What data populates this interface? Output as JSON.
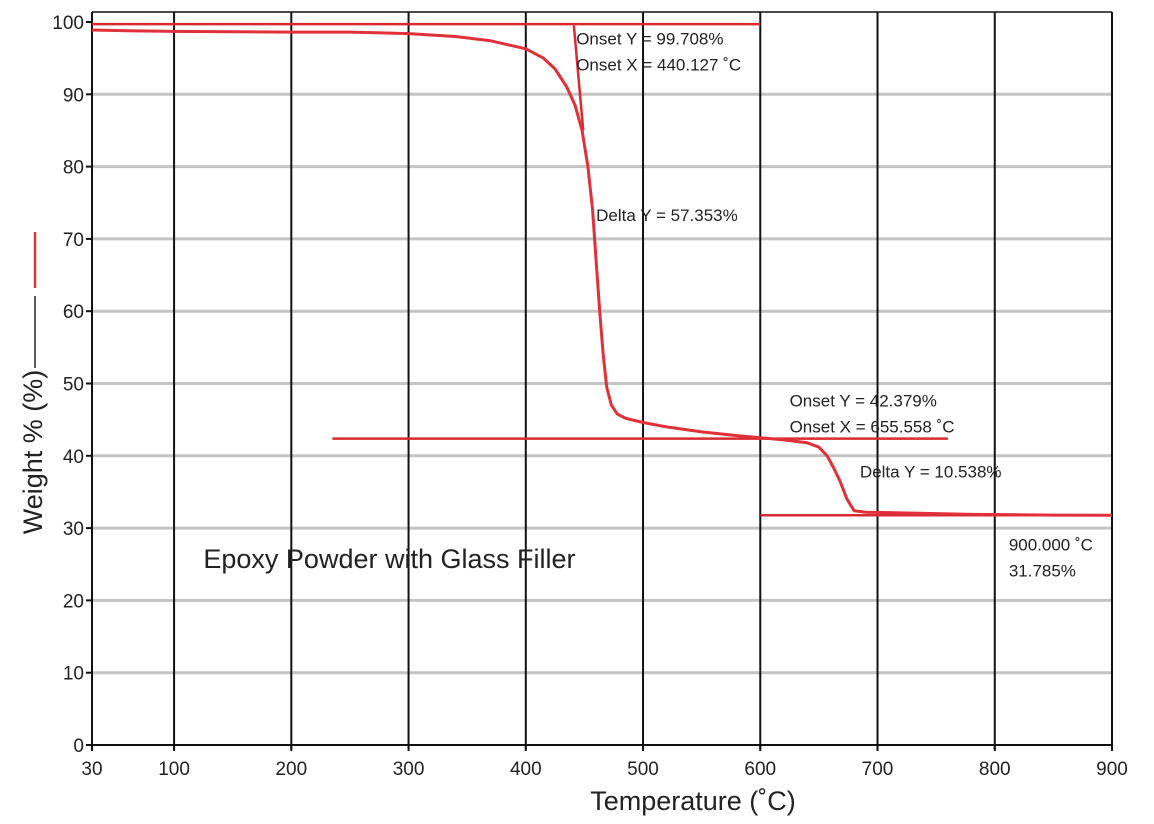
{
  "chart_data": {
    "type": "line",
    "xlabel": "Temperature (˚C)",
    "ylabel": "Weight % (%)",
    "xlim": [
      30,
      900
    ],
    "ylim": [
      0,
      100
    ],
    "x_ticks": [
      30,
      100,
      200,
      300,
      400,
      500,
      600,
      700,
      800,
      900
    ],
    "y_ticks": [
      0,
      10,
      20,
      30,
      40,
      50,
      60,
      70,
      80,
      90,
      100
    ],
    "grid": {
      "vertical": true,
      "horizontal": true
    },
    "colors": {
      "curve": "#e0303a",
      "construction": "#d82a30",
      "grid_h": "#c4c4c4",
      "grid_v": "#111111"
    },
    "series": [
      {
        "values": [
          [
            30,
            98.9
          ],
          [
            60,
            98.8
          ],
          [
            100,
            98.7
          ],
          [
            200,
            98.6
          ],
          [
            250,
            98.6
          ],
          [
            300,
            98.4
          ],
          [
            340,
            98.0
          ],
          [
            370,
            97.4
          ],
          [
            400,
            96.3
          ],
          [
            415,
            95.0
          ],
          [
            425,
            93.5
          ],
          [
            435,
            91.0
          ],
          [
            442,
            88.5
          ],
          [
            448,
            85.0
          ],
          [
            453,
            80.0
          ],
          [
            457,
            74.0
          ],
          [
            460,
            67.0
          ],
          [
            463,
            60.0
          ],
          [
            466,
            54.0
          ],
          [
            469,
            49.5
          ],
          [
            473,
            47.0
          ],
          [
            478,
            45.8
          ],
          [
            485,
            45.2
          ],
          [
            500,
            44.6
          ],
          [
            520,
            44.0
          ],
          [
            550,
            43.3
          ],
          [
            580,
            42.8
          ],
          [
            600,
            42.5
          ],
          [
            620,
            42.2
          ],
          [
            640,
            41.8
          ],
          [
            650,
            41.2
          ],
          [
            657,
            40.0
          ],
          [
            662,
            38.5
          ],
          [
            668,
            36.5
          ],
          [
            674,
            34.0
          ],
          [
            680,
            32.4
          ],
          [
            690,
            32.2
          ],
          [
            720,
            32.1
          ],
          [
            780,
            31.9
          ],
          [
            850,
            31.8
          ],
          [
            900,
            31.785
          ]
        ]
      }
    ],
    "construction_lines": [
      {
        "x": [
          30,
          600
        ],
        "y": [
          99.708,
          99.708
        ]
      },
      {
        "x": [
          441,
          449
        ],
        "y": [
          99.5,
          85.0
        ]
      },
      {
        "x": [
          235,
          760
        ],
        "y": [
          42.379,
          42.379
        ]
      },
      {
        "x": [
          600,
          900
        ],
        "y": [
          31.785,
          31.785
        ]
      }
    ],
    "annotations": [
      {
        "lines": [
          "Onset Y = 99.708%",
          "Onset X = 440.127 ˚C"
        ],
        "x": 443,
        "y": 96.9
      },
      {
        "lines": [
          "Delta Y = 57.353%"
        ],
        "x": 460,
        "y": 72.5
      },
      {
        "lines": [
          "Onset Y = 42.379%",
          "Onset X = 655.558 ˚C"
        ],
        "x": 625,
        "y": 46.8
      },
      {
        "lines": [
          "Delta Y = 10.538%"
        ],
        "x": 685,
        "y": 37.0
      },
      {
        "lines": [
          "900.000 ˚C",
          "31.785%"
        ],
        "x": 812,
        "y": 26.9
      }
    ],
    "sample_label": {
      "text": "Epoxy Powder with Glass Filler",
      "x": 125,
      "y": 24.5
    }
  }
}
